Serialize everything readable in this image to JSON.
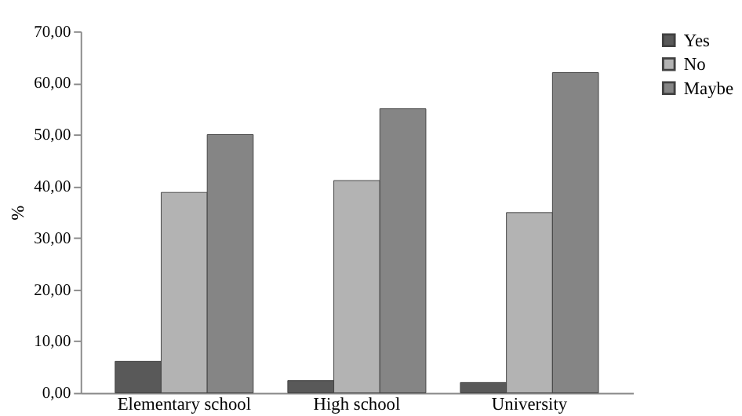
{
  "chart_data": {
    "type": "bar",
    "ylabel": "%",
    "categories": [
      "Elementary school",
      "High school",
      "University"
    ],
    "series": [
      {
        "name": "Yes",
        "color": "#595959",
        "values": [
          6.1,
          2.4,
          2.0
        ]
      },
      {
        "name": "No",
        "color": "#b3b3b3",
        "values": [
          38.8,
          41.1,
          34.9
        ]
      },
      {
        "name": "Maybe",
        "color": "#858585",
        "values": [
          50.0,
          55.0,
          62.0
        ]
      }
    ],
    "ylim": [
      0,
      70
    ],
    "yticks": [
      {
        "value": 0,
        "label": "0,00"
      },
      {
        "value": 10,
        "label": "10,00"
      },
      {
        "value": 20,
        "label": "20,00"
      },
      {
        "value": 30,
        "label": "30,00"
      },
      {
        "value": 40,
        "label": "40,00"
      },
      {
        "value": 50,
        "label": "50,00"
      },
      {
        "value": 60,
        "label": "60,00"
      },
      {
        "value": 70,
        "label": "70,00"
      }
    ],
    "grid": false,
    "legend": "right"
  }
}
